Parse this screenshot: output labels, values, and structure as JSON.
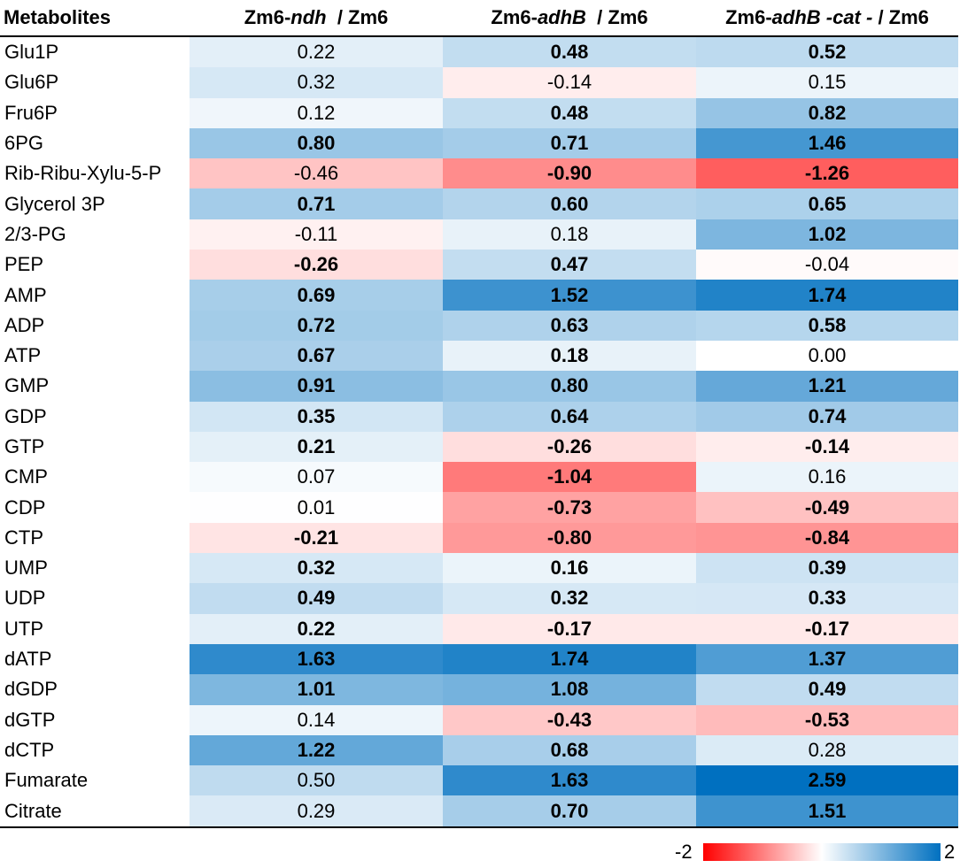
{
  "chart_data": {
    "type": "heatmap",
    "row_header": "Metabolites",
    "columns": [
      {
        "prefix": "Zm6-",
        "italic": "ndh",
        "suffix": "  / Zm6"
      },
      {
        "prefix": "Zm6-",
        "italic": "adhB",
        "suffix": "  / Zm6"
      },
      {
        "prefix": "Zm6-",
        "italic": "adhB -cat -",
        "suffix": " / Zm6"
      }
    ],
    "rows": [
      {
        "label": "Glu1P",
        "values": [
          "0.22",
          "0.48",
          "0.52"
        ],
        "bold": [
          false,
          true,
          true
        ]
      },
      {
        "label": "Glu6P",
        "values": [
          "0.32",
          "-0.14",
          "0.15"
        ],
        "bold": [
          false,
          false,
          false
        ]
      },
      {
        "label": "Fru6P",
        "values": [
          "0.12",
          "0.48",
          "0.82"
        ],
        "bold": [
          false,
          true,
          true
        ]
      },
      {
        "label": "6PG",
        "values": [
          "0.80",
          "0.71",
          "1.46"
        ],
        "bold": [
          true,
          true,
          true
        ]
      },
      {
        "label": "Rib-Ribu-Xylu-5-P",
        "values": [
          "-0.46",
          "-0.90",
          "-1.26"
        ],
        "bold": [
          false,
          true,
          true
        ]
      },
      {
        "label": "Glycerol 3P",
        "values": [
          "0.71",
          "0.60",
          "0.65"
        ],
        "bold": [
          true,
          true,
          true
        ]
      },
      {
        "label": "2/3-PG",
        "values": [
          "-0.11",
          "0.18",
          "1.02"
        ],
        "bold": [
          false,
          false,
          true
        ]
      },
      {
        "label": "PEP",
        "values": [
          "-0.26",
          "0.47",
          "-0.04"
        ],
        "bold": [
          true,
          true,
          false
        ]
      },
      {
        "label": "AMP",
        "values": [
          "0.69",
          "1.52",
          "1.74"
        ],
        "bold": [
          true,
          true,
          true
        ]
      },
      {
        "label": "ADP",
        "values": [
          "0.72",
          "0.63",
          "0.58"
        ],
        "bold": [
          true,
          true,
          true
        ]
      },
      {
        "label": "ATP",
        "values": [
          "0.67",
          "0.18",
          "0.00"
        ],
        "bold": [
          true,
          true,
          false
        ]
      },
      {
        "label": "GMP",
        "values": [
          "0.91",
          "0.80",
          "1.21"
        ],
        "bold": [
          true,
          true,
          true
        ]
      },
      {
        "label": "GDP",
        "values": [
          "0.35",
          "0.64",
          "0.74"
        ],
        "bold": [
          true,
          true,
          true
        ]
      },
      {
        "label": "GTP",
        "values": [
          "0.21",
          "-0.26",
          "-0.14"
        ],
        "bold": [
          true,
          true,
          true
        ]
      },
      {
        "label": "CMP",
        "values": [
          "0.07",
          "-1.04",
          "0.16"
        ],
        "bold": [
          false,
          true,
          false
        ]
      },
      {
        "label": "CDP",
        "values": [
          "0.01",
          "-0.73",
          "-0.49"
        ],
        "bold": [
          false,
          true,
          true
        ]
      },
      {
        "label": "CTP",
        "values": [
          "-0.21",
          "-0.80",
          "-0.84"
        ],
        "bold": [
          true,
          true,
          true
        ]
      },
      {
        "label": "UMP",
        "values": [
          "0.32",
          "0.16",
          "0.39"
        ],
        "bold": [
          true,
          true,
          true
        ]
      },
      {
        "label": "UDP",
        "values": [
          "0.49",
          "0.32",
          "0.33"
        ],
        "bold": [
          true,
          true,
          true
        ]
      },
      {
        "label": "UTP",
        "values": [
          "0.22",
          "-0.17",
          "-0.17"
        ],
        "bold": [
          true,
          true,
          true
        ]
      },
      {
        "label": "dATP",
        "values": [
          "1.63",
          "1.74",
          "1.37"
        ],
        "bold": [
          true,
          true,
          true
        ]
      },
      {
        "label": "dGDP",
        "values": [
          "1.01",
          "1.08",
          "0.49"
        ],
        "bold": [
          true,
          true,
          true
        ]
      },
      {
        "label": "dGTP",
        "values": [
          "0.14",
          "-0.43",
          "-0.53"
        ],
        "bold": [
          false,
          true,
          true
        ]
      },
      {
        "label": "dCTP",
        "values": [
          "1.22",
          "0.68",
          "0.28"
        ],
        "bold": [
          true,
          true,
          false
        ]
      },
      {
        "label": "Fumarate",
        "values": [
          "0.50",
          "1.63",
          "2.59"
        ],
        "bold": [
          false,
          true,
          true
        ]
      },
      {
        "label": "Citrate",
        "values": [
          "0.29",
          "0.70",
          "1.51"
        ],
        "bold": [
          false,
          true,
          true
        ]
      }
    ],
    "color_scale": {
      "min": -2,
      "max": 2,
      "min_label": "-2",
      "max_label": "2",
      "min_color": "#ff0000",
      "mid_color": "#ffffff",
      "max_color": "#0070c0"
    }
  }
}
